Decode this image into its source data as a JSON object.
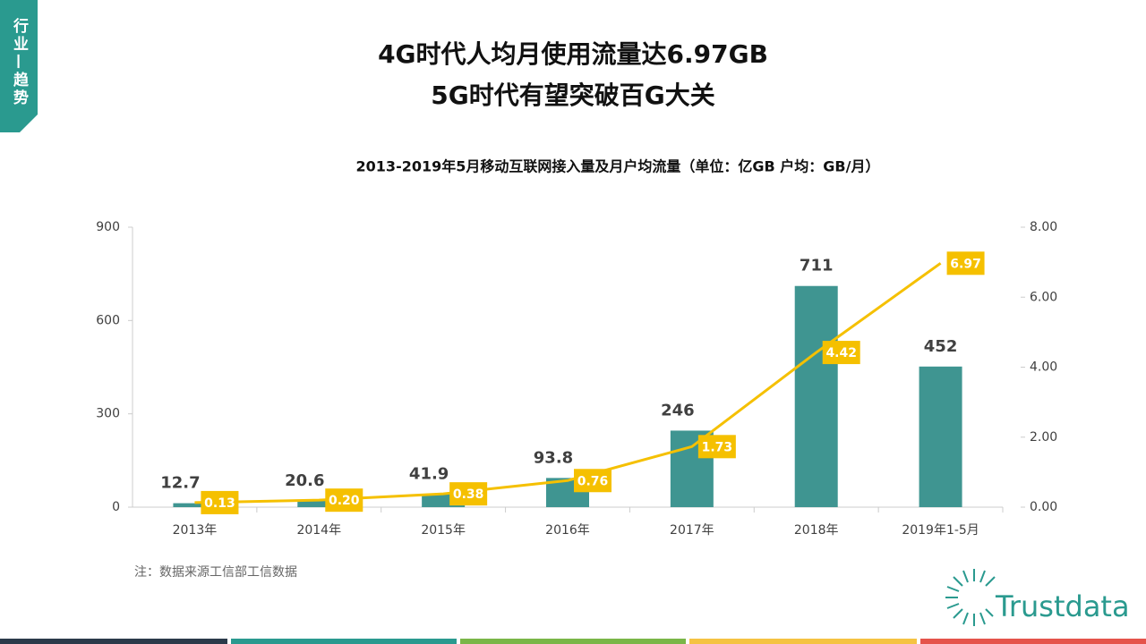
{
  "side_tab": "行业—趋势",
  "header": {
    "title_lines": [
      "4G时代人均月使用流量达6.97GB",
      "5G时代有望突破百G大关"
    ]
  },
  "chart_data": {
    "type": "bar",
    "title": "2013-2019年5月移动互联网接入量及月户均流量（单位：亿GB  户均：GB/月）",
    "categories": [
      "2013年",
      "2014年",
      "2015年",
      "2016年",
      "2017年",
      "2018年",
      "2019年1-5月"
    ],
    "series": [
      {
        "type": "bar",
        "color": "#3f9591",
        "values": [
          12.7,
          20.6,
          41.9,
          93.8,
          246,
          711,
          452
        ]
      },
      {
        "type": "line",
        "axis": "y2",
        "color": "#f5c000",
        "values": [
          0.13,
          0.2,
          0.38,
          0.76,
          1.73,
          4.42,
          6.97
        ],
        "value_labels": [
          "0.13",
          "0.20",
          "0.38",
          "0.76",
          "1.73",
          "4.42",
          "6.97"
        ]
      }
    ],
    "ylim": [
      0,
      900
    ],
    "yticks": [
      0,
      300,
      600,
      900
    ],
    "y2lim": [
      0,
      8
    ],
    "y2ticks": [
      {
        "value": 0,
        "label": "0.00"
      },
      {
        "value": 2,
        "label": "2.00"
      },
      {
        "value": 4,
        "label": "4.00"
      },
      {
        "value": 6,
        "label": "6.00"
      },
      {
        "value": 8,
        "label": "8.00"
      }
    ],
    "note": "注：数据来源工信部工信数据"
  },
  "footer": {
    "logo": "Trustdata"
  }
}
